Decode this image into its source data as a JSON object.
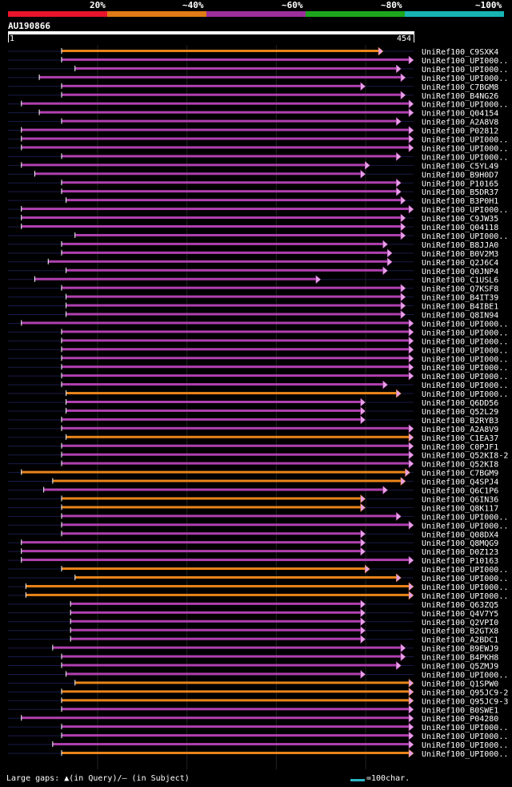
{
  "legend": {
    "segments": [
      {
        "label": "20%",
        "color": "#e8142c"
      },
      {
        "label": "~40%",
        "color": "#e07b17"
      },
      {
        "label": "~60%",
        "color": "#9c2f9c"
      },
      {
        "label": "~80%",
        "color": "#1da51d"
      },
      {
        "label": "~100%",
        "color": "#18b4b4"
      }
    ]
  },
  "query": {
    "id": "AU190866",
    "start": "1",
    "end": "454"
  },
  "footer": {
    "gaps_text": "Large gaps: ▲(in Query)/— (in Subject)",
    "scale_text": "=100char."
  },
  "chart_data": {
    "type": "alignment",
    "query_length": 454,
    "columns": [
      "label",
      "start",
      "end",
      "color"
    ],
    "rows": [
      [
        "UniRef100_C9SXK4",
        60,
        420,
        "orange"
      ],
      [
        "UniRef100_UPI000..",
        60,
        454,
        "purple"
      ],
      [
        "UniRef100_UPI000..",
        75,
        440,
        "purple"
      ],
      [
        "UniRef100_UPI000..",
        35,
        445,
        "purple"
      ],
      [
        "UniRef100_C7BGM8",
        60,
        400,
        "purple"
      ],
      [
        "UniRef100_B4NG26",
        60,
        445,
        "purple"
      ],
      [
        "UniRef100_UPI000..",
        15,
        454,
        "purple"
      ],
      [
        "UniRef100_Q04154",
        35,
        454,
        "purple"
      ],
      [
        "UniRef100_A2A8V8",
        60,
        440,
        "purple"
      ],
      [
        "UniRef100_P02812",
        15,
        454,
        "purple"
      ],
      [
        "UniRef100_UPI000..",
        15,
        454,
        "purple"
      ],
      [
        "UniRef100_UPI000..",
        15,
        454,
        "purple"
      ],
      [
        "UniRef100_UPI000..",
        60,
        440,
        "purple"
      ],
      [
        "UniRef100_C5YL49",
        15,
        405,
        "purple"
      ],
      [
        "UniRef100_B9H0D7",
        30,
        400,
        "purple"
      ],
      [
        "UniRef100_P10165",
        60,
        440,
        "purple"
      ],
      [
        "UniRef100_B5DR37",
        60,
        440,
        "purple"
      ],
      [
        "UniRef100_B3P0H1",
        65,
        445,
        "purple"
      ],
      [
        "UniRef100_UPI000..",
        15,
        454,
        "purple"
      ],
      [
        "UniRef100_C9JW35",
        15,
        445,
        "purple"
      ],
      [
        "UniRef100_Q04118",
        15,
        445,
        "purple"
      ],
      [
        "UniRef100_UPI000..",
        75,
        445,
        "purple"
      ],
      [
        "UniRef100_B8JJA0",
        60,
        425,
        "purple"
      ],
      [
        "UniRef100_B0V2M3",
        60,
        430,
        "purple"
      ],
      [
        "UniRef100_Q2J6C4",
        45,
        430,
        "purple"
      ],
      [
        "UniRef100_Q0JNP4",
        65,
        425,
        "purple"
      ],
      [
        "UniRef100_C1USL6",
        30,
        350,
        "purple"
      ],
      [
        "UniRef100_Q7KSF8",
        60,
        445,
        "purple"
      ],
      [
        "UniRef100_B4IT39",
        65,
        445,
        "purple"
      ],
      [
        "UniRef100_B4IBE1",
        65,
        445,
        "purple"
      ],
      [
        "UniRef100_Q8IN94",
        65,
        445,
        "purple"
      ],
      [
        "UniRef100_UPI000..",
        15,
        454,
        "purple"
      ],
      [
        "UniRef100_UPI000..",
        60,
        454,
        "purple"
      ],
      [
        "UniRef100_UPI000..",
        60,
        454,
        "purple"
      ],
      [
        "UniRef100_UPI000..",
        60,
        454,
        "purple"
      ],
      [
        "UniRef100_UPI000..",
        60,
        454,
        "purple"
      ],
      [
        "UniRef100_UPI000..",
        60,
        454,
        "purple"
      ],
      [
        "UniRef100_UPI000..",
        60,
        454,
        "purple"
      ],
      [
        "UniRef100_UPI000..",
        60,
        425,
        "purple"
      ],
      [
        "UniRef100_UPI000..",
        65,
        440,
        "orange"
      ],
      [
        "UniRef100_Q6DD56",
        65,
        400,
        "purple"
      ],
      [
        "UniRef100_Q52L29",
        65,
        400,
        "purple"
      ],
      [
        "UniRef100_B2RYB3",
        60,
        400,
        "purple"
      ],
      [
        "UniRef100_A2A8V9",
        60,
        454,
        "purple"
      ],
      [
        "UniRef100_C1EA37",
        65,
        454,
        "orange"
      ],
      [
        "UniRef100_C0PJF1",
        60,
        454,
        "purple"
      ],
      [
        "UniRef100_Q52KI8-2",
        60,
        454,
        "purple"
      ],
      [
        "UniRef100_Q52KI8",
        60,
        454,
        "purple"
      ],
      [
        "UniRef100_C7BGM9",
        15,
        450,
        "orange"
      ],
      [
        "UniRef100_Q4SPJ4",
        50,
        445,
        "orange"
      ],
      [
        "UniRef100_Q6C1P6",
        40,
        425,
        "purple"
      ],
      [
        "UniRef100_Q6IN36",
        60,
        400,
        "orange"
      ],
      [
        "UniRef100_Q8K117",
        60,
        400,
        "orange"
      ],
      [
        "UniRef100_UPI000..",
        60,
        440,
        "purple"
      ],
      [
        "UniRef100_UPI000..",
        60,
        454,
        "purple"
      ],
      [
        "UniRef100_Q08DX4",
        60,
        400,
        "purple"
      ],
      [
        "UniRef100_Q8MQG9",
        15,
        400,
        "purple"
      ],
      [
        "UniRef100_D0Z123",
        15,
        400,
        "purple"
      ],
      [
        "UniRef100_P10163",
        15,
        454,
        "purple"
      ],
      [
        "UniRef100_UPI000..",
        60,
        405,
        "orange"
      ],
      [
        "UniRef100_UPI000..",
        75,
        440,
        "orange"
      ],
      [
        "UniRef100_UPI000..",
        20,
        454,
        "orange"
      ],
      [
        "UniRef100_UPI000..",
        20,
        454,
        "orange"
      ],
      [
        "UniRef100_Q63ZQ5",
        70,
        400,
        "purple"
      ],
      [
        "UniRef100_Q4V7Y5",
        70,
        400,
        "purple"
      ],
      [
        "UniRef100_Q2VPI0",
        70,
        400,
        "purple"
      ],
      [
        "UniRef100_B2GTX8",
        70,
        400,
        "purple"
      ],
      [
        "UniRef100_A2BDC1",
        70,
        400,
        "purple"
      ],
      [
        "UniRef100_B9EWJ9",
        50,
        445,
        "purple"
      ],
      [
        "UniRef100_B4PKH8",
        60,
        445,
        "purple"
      ],
      [
        "UniRef100_Q5ZMJ9",
        60,
        440,
        "purple"
      ],
      [
        "UniRef100_UPI000..",
        65,
        400,
        "purple"
      ],
      [
        "UniRef100_Q1SPW0",
        75,
        454,
        "orange"
      ],
      [
        "UniRef100_Q95JC9-2",
        60,
        454,
        "orange"
      ],
      [
        "UniRef100_Q95JC9-3",
        60,
        454,
        "orange"
      ],
      [
        "UniRef100_B0SWE1",
        60,
        454,
        "purple"
      ],
      [
        "UniRef100_P04280",
        15,
        454,
        "purple"
      ],
      [
        "UniRef100_UPI000..",
        60,
        454,
        "purple"
      ],
      [
        "UniRef100_UPI000..",
        60,
        454,
        "purple"
      ],
      [
        "UniRef100_UPI000..",
        50,
        454,
        "purple"
      ],
      [
        "UniRef100_UPI000..",
        60,
        454,
        "orange"
      ]
    ]
  }
}
